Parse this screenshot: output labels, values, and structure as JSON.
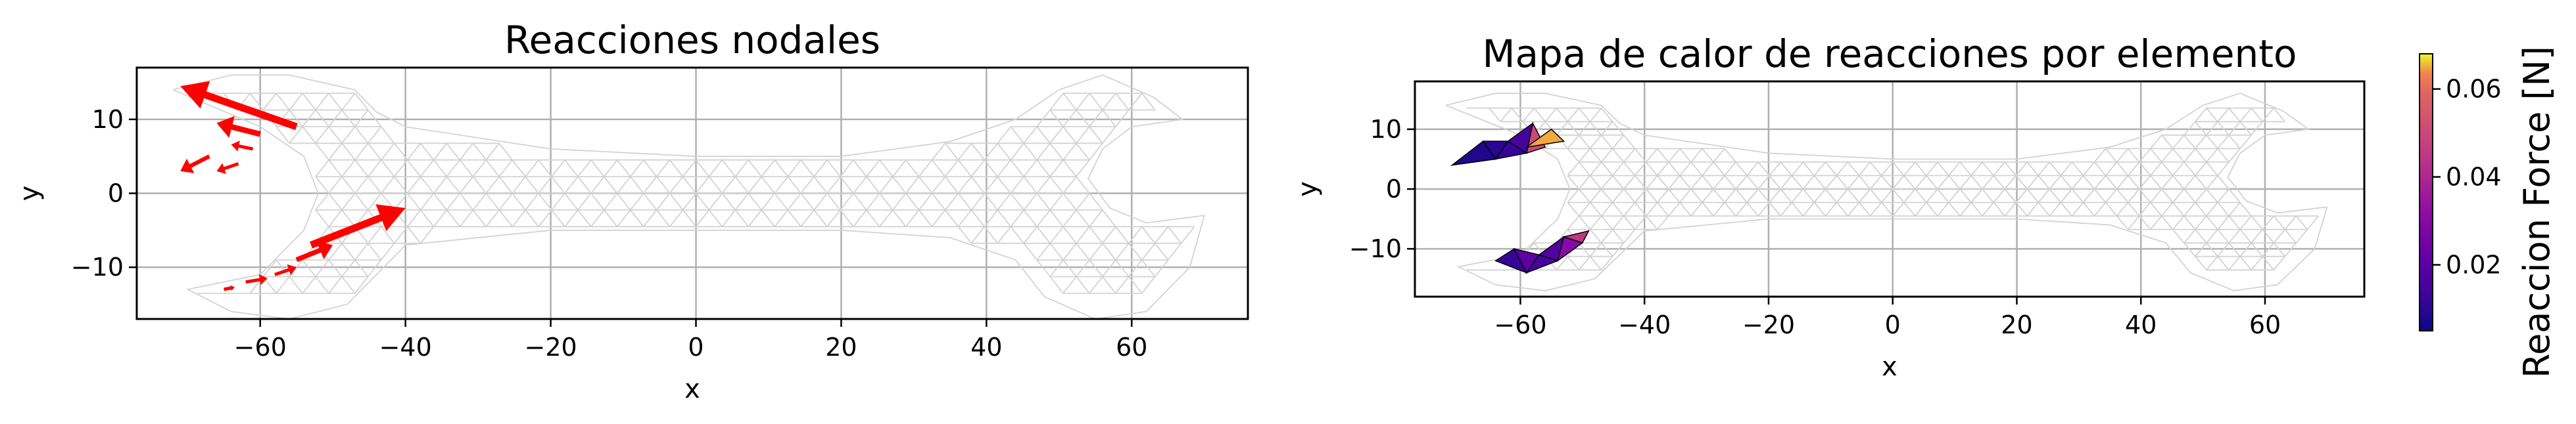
{
  "chart_data": [
    {
      "type": "quiver",
      "title": "Reacciones nodales",
      "xlabel": "x",
      "ylabel": "y",
      "xlim": [
        -77,
        76
      ],
      "ylim": [
        -17,
        17
      ],
      "xticks": [
        -60,
        -40,
        -20,
        0,
        20,
        40,
        60
      ],
      "yticks": [
        -10,
        0,
        10
      ],
      "grid": true,
      "mesh_color": "#d3d3d3",
      "arrow_color": "#ff0000",
      "arrows": [
        {
          "x": -55,
          "y": 9,
          "u": -16,
          "v": 5.5
        },
        {
          "x": -60,
          "y": 8,
          "u": -6,
          "v": 1.5
        },
        {
          "x": -61,
          "y": 6,
          "u": -3,
          "v": 0.6
        },
        {
          "x": -67,
          "y": 5,
          "u": -4,
          "v": -2
        },
        {
          "x": -63,
          "y": 4,
          "u": -3,
          "v": -1
        },
        {
          "x": -53,
          "y": -7,
          "u": 13,
          "v": 5
        },
        {
          "x": -55,
          "y": -9,
          "u": 5,
          "v": 2
        },
        {
          "x": -58,
          "y": -11,
          "u": 3,
          "v": 1
        },
        {
          "x": -62,
          "y": -12,
          "u": 3,
          "v": 0.5
        },
        {
          "x": -65,
          "y": -13,
          "u": 1.5,
          "v": 0.3
        }
      ]
    },
    {
      "type": "heatmap",
      "title": "Mapa de calor de reacciones por elemento",
      "xlabel": "x",
      "ylabel": "y",
      "xlim": [
        -77,
        76
      ],
      "ylim": [
        -18,
        18
      ],
      "xticks": [
        -60,
        -40,
        -20,
        0,
        20,
        40,
        60
      ],
      "yticks": [
        -10,
        0,
        10
      ],
      "grid": true,
      "colormap": "plasma",
      "colorbar": {
        "label": "Reaccion Force [N]",
        "range": [
          0.005,
          0.068
        ],
        "ticks": [
          0.02,
          0.04,
          0.06
        ],
        "tick_labels": [
          "0.02",
          "0.04",
          "0.06"
        ]
      },
      "elements": [
        {
          "nodes": [
            [
              -71,
              4
            ],
            [
              -66,
              8
            ],
            [
              -64,
              5
            ]
          ],
          "value": 0.008
        },
        {
          "nodes": [
            [
              -66,
              8
            ],
            [
              -62,
              8
            ],
            [
              -64,
              5
            ]
          ],
          "value": 0.01
        },
        {
          "nodes": [
            [
              -64,
              5
            ],
            [
              -62,
              8
            ],
            [
              -59,
              6
            ]
          ],
          "value": 0.012
        },
        {
          "nodes": [
            [
              -62,
              8
            ],
            [
              -58,
              11
            ],
            [
              -59,
              6
            ]
          ],
          "value": 0.015
        },
        {
          "nodes": [
            [
              -59,
              6
            ],
            [
              -58,
              11
            ],
            [
              -56,
              7
            ]
          ],
          "value": 0.05
        },
        {
          "nodes": [
            [
              -59,
              7
            ],
            [
              -55,
              10
            ],
            [
              -53,
              8
            ]
          ],
          "value": 0.065
        },
        {
          "nodes": [
            [
              -64,
              -12
            ],
            [
              -59,
              -14
            ],
            [
              -61,
              -10
            ]
          ],
          "value": 0.012
        },
        {
          "nodes": [
            [
              -61,
              -10
            ],
            [
              -59,
              -14
            ],
            [
              -57,
              -11
            ]
          ],
          "value": 0.02
        },
        {
          "nodes": [
            [
              -57,
              -11
            ],
            [
              -59,
              -14
            ],
            [
              -54,
              -12
            ]
          ],
          "value": 0.015
        },
        {
          "nodes": [
            [
              -57,
              -11
            ],
            [
              -54,
              -12
            ],
            [
              -53,
              -8
            ]
          ],
          "value": 0.018
        },
        {
          "nodes": [
            [
              -53,
              -8
            ],
            [
              -54,
              -12
            ],
            [
              -50,
              -9
            ]
          ],
          "value": 0.03
        },
        {
          "nodes": [
            [
              -53,
              -8
            ],
            [
              -50,
              -9
            ],
            [
              -49,
              -7
            ]
          ],
          "value": 0.045
        }
      ]
    }
  ]
}
